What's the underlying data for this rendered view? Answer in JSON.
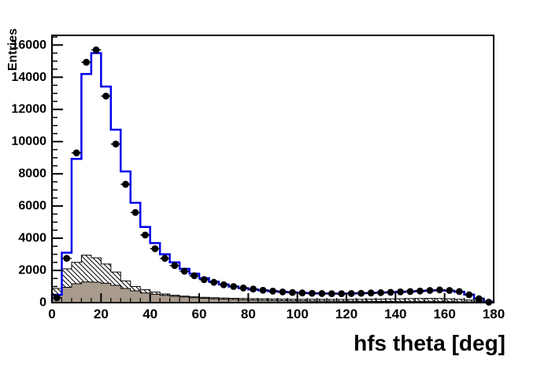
{
  "figure": {
    "background": "#ffffff",
    "frame_line_color": "#000000"
  },
  "chart_data": {
    "type": "histogram",
    "title": "",
    "xlabel": "hfs theta [deg]",
    "ylabel": "Entries",
    "xlim": [
      0,
      180
    ],
    "ylim": [
      0,
      16600
    ],
    "grid": false,
    "legend_position": "none",
    "x_major_ticks": [
      0,
      20,
      40,
      60,
      80,
      100,
      120,
      140,
      160,
      180
    ],
    "x_minor_step": 4,
    "y_major_ticks": [
      0,
      2000,
      4000,
      6000,
      8000,
      10000,
      12000,
      14000,
      16000
    ],
    "y_minor_step": 500,
    "bin_width": 4,
    "bin_centers": [
      2,
      6,
      10,
      14,
      18,
      22,
      26,
      30,
      34,
      38,
      42,
      46,
      50,
      54,
      58,
      62,
      66,
      70,
      74,
      78,
      82,
      86,
      90,
      94,
      98,
      102,
      106,
      110,
      114,
      118,
      122,
      126,
      130,
      134,
      138,
      142,
      146,
      150,
      154,
      158,
      162,
      166,
      170,
      174,
      178
    ],
    "series": [
      {
        "name": "hatched-background-histogram",
        "style": "filled-step",
        "fill": "hatch-backslash",
        "line_color": "#000000",
        "values": [
          880,
          2100,
          2500,
          2950,
          2780,
          2400,
          1900,
          1350,
          1000,
          800,
          650,
          540,
          460,
          400,
          360,
          330,
          305,
          285,
          270,
          255,
          245,
          235,
          225,
          220,
          215,
          210,
          205,
          205,
          200,
          200,
          205,
          210,
          215,
          220,
          230,
          240,
          250,
          255,
          260,
          255,
          240,
          210,
          160,
          110,
          60
        ]
      },
      {
        "name": "solid-background-histogram",
        "style": "filled-step",
        "fill": "#a89a8c",
        "line_color": "#000000",
        "values": [
          440,
          950,
          1170,
          1280,
          1270,
          1200,
          1075,
          880,
          730,
          600,
          520,
          450,
          390,
          345,
          305,
          270,
          240,
          215,
          195,
          175,
          160,
          145,
          135,
          125,
          115,
          110,
          100,
          95,
          90,
          85,
          85,
          80,
          80,
          75,
          75,
          70,
          70,
          70,
          65,
          65,
          60,
          55,
          50,
          40,
          30
        ]
      },
      {
        "name": "mc-total-histogram",
        "style": "step-line",
        "line_color": "#0000ee",
        "line_width": 2.5,
        "values": [
          490,
          3100,
          8930,
          14200,
          15500,
          13420,
          10740,
          8150,
          6200,
          4700,
          3700,
          3000,
          2500,
          2100,
          1800,
          1520,
          1300,
          1130,
          1000,
          900,
          820,
          760,
          710,
          670,
          635,
          605,
          585,
          570,
          560,
          560,
          570,
          585,
          600,
          620,
          640,
          665,
          690,
          720,
          750,
          770,
          740,
          670,
          500,
          250,
          60
        ]
      },
      {
        "name": "data-points",
        "style": "markers",
        "marker": "filled-circle",
        "marker_color": "#000000",
        "values": [
          300,
          2750,
          9300,
          14930,
          15700,
          12830,
          9850,
          7350,
          5600,
          4200,
          3350,
          2750,
          2300,
          1950,
          1670,
          1430,
          1260,
          1110,
          1000,
          910,
          840,
          770,
          715,
          665,
          630,
          600,
          580,
          565,
          555,
          555,
          565,
          580,
          600,
          620,
          640,
          665,
          690,
          720,
          755,
          790,
          755,
          690,
          490,
          240,
          30
        ]
      }
    ]
  }
}
